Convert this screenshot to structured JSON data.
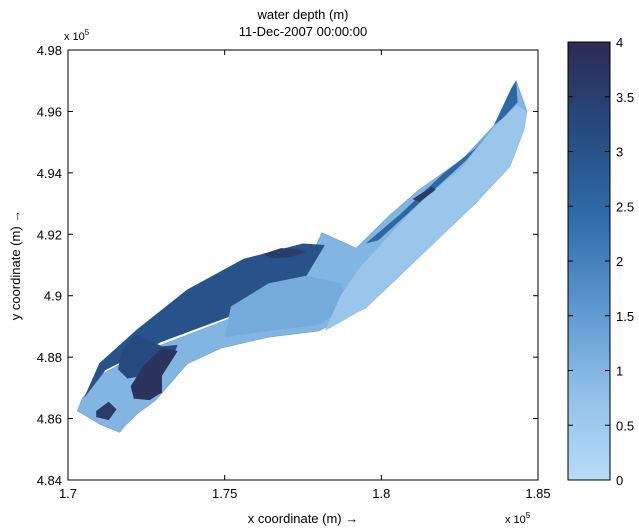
{
  "chart_data": {
    "type": "heatmap",
    "title": "water depth (m)",
    "subtitle": "11-Dec-2007 00:00:00",
    "xlabel": "x coordinate (m) →",
    "ylabel": "y coordinate (m) →",
    "x_exponent_label": "x 10",
    "x_exponent_power": "5",
    "y_exponent_label": "x 10",
    "y_exponent_power": "5",
    "xlim": [
      1.7,
      1.85
    ],
    "ylim": [
      4.84,
      4.98
    ],
    "x_ticks": [
      1.7,
      1.75,
      1.8,
      1.85
    ],
    "x_tick_labels": [
      "1.7",
      "1.75",
      "1.8",
      "1.85"
    ],
    "y_ticks": [
      4.84,
      4.86,
      4.88,
      4.9,
      4.92,
      4.94,
      4.96,
      4.98
    ],
    "y_tick_labels": [
      "4.84",
      "4.86",
      "4.88",
      "4.9",
      "4.92",
      "4.94",
      "4.96",
      "4.98"
    ],
    "colorbar": {
      "min": 0,
      "max": 4,
      "ticks": [
        0,
        0.5,
        1,
        1.5,
        2,
        2.5,
        3,
        3.5,
        4
      ],
      "tick_labels": [
        "0",
        "0.5",
        "1",
        "1.5",
        "2",
        "2.5",
        "3",
        "3.5",
        "4"
      ],
      "colors": [
        "#b9dcf6",
        "#8fbfe8",
        "#5b96cf",
        "#2f6ca8",
        "#264a80",
        "#2d2b52"
      ]
    },
    "grid": false,
    "domain_outline": [
      [
        1.7165,
        4.8555
      ],
      [
        1.7105,
        4.858
      ],
      [
        1.703,
        4.8625
      ],
      [
        1.7045,
        4.8665
      ],
      [
        1.711,
        4.8745
      ],
      [
        1.7235,
        4.8815
      ],
      [
        1.74,
        4.888
      ],
      [
        1.758,
        4.895
      ],
      [
        1.772,
        4.9
      ],
      [
        1.781,
        4.9205
      ],
      [
        1.792,
        4.9155
      ],
      [
        1.803,
        4.9265
      ],
      [
        1.812,
        4.9345
      ],
      [
        1.826,
        4.9445
      ],
      [
        1.836,
        4.9555
      ],
      [
        1.8415,
        4.9675
      ],
      [
        1.843,
        4.97
      ],
      [
        1.8465,
        4.96
      ],
      [
        1.8455,
        4.954
      ],
      [
        1.841,
        4.942
      ],
      [
        1.83,
        4.93
      ],
      [
        1.812,
        4.9125
      ],
      [
        1.795,
        4.896
      ],
      [
        1.78,
        4.8885
      ],
      [
        1.764,
        4.8865
      ],
      [
        1.749,
        4.883
      ],
      [
        1.738,
        4.8778
      ],
      [
        1.731,
        4.8695
      ],
      [
        1.728,
        4.866
      ],
      [
        1.722,
        4.8615
      ],
      [
        1.718,
        4.8575
      ]
    ],
    "depth_zones": [
      {
        "depth": 3.0,
        "polygon": [
          [
            1.705,
            4.8665
          ],
          [
            1.712,
            4.8758
          ],
          [
            1.73,
            4.885
          ],
          [
            1.755,
            4.8945
          ],
          [
            1.772,
            4.8995
          ],
          [
            1.782,
            4.9165
          ],
          [
            1.775,
            4.917
          ],
          [
            1.756,
            4.912
          ],
          [
            1.738,
            4.902
          ],
          [
            1.722,
            4.889
          ],
          [
            1.71,
            4.878
          ]
        ]
      },
      {
        "depth": 2.5,
        "polygon": [
          [
            1.795,
            4.917
          ],
          [
            1.806,
            4.9265
          ],
          [
            1.82,
            4.94
          ],
          [
            1.83,
            4.948
          ],
          [
            1.835,
            4.954
          ],
          [
            1.827,
            4.944
          ],
          [
            1.812,
            4.93
          ],
          [
            1.799,
            4.918
          ]
        ]
      },
      {
        "depth": 2.5,
        "polygon": [
          [
            1.836,
            4.9555
          ],
          [
            1.8415,
            4.9675
          ],
          [
            1.843,
            4.97
          ],
          [
            1.8435,
            4.963
          ],
          [
            1.839,
            4.958
          ]
        ]
      },
      {
        "depth": 3.6,
        "polygon": [
          [
            1.762,
            4.9135
          ],
          [
            1.768,
            4.9155
          ],
          [
            1.773,
            4.9152
          ],
          [
            1.776,
            4.9143
          ],
          [
            1.771,
            4.9125
          ],
          [
            1.765,
            4.9122
          ]
        ]
      },
      {
        "depth": 3.6,
        "polygon": [
          [
            1.81,
            4.9315
          ],
          [
            1.816,
            4.9355
          ],
          [
            1.8175,
            4.9345
          ],
          [
            1.812,
            4.9305
          ]
        ]
      },
      {
        "depth": 3.2,
        "polygon": [
          [
            1.722,
            4.8875
          ],
          [
            1.73,
            4.8835
          ],
          [
            1.735,
            4.884
          ],
          [
            1.733,
            4.879
          ],
          [
            1.728,
            4.876
          ],
          [
            1.724,
            4.874
          ],
          [
            1.719,
            4.873
          ],
          [
            1.716,
            4.876
          ],
          [
            1.717,
            4.882
          ]
        ]
      },
      {
        "depth": 3.8,
        "polygon": [
          [
            1.724,
            4.877
          ],
          [
            1.73,
            4.883
          ],
          [
            1.735,
            4.882
          ],
          [
            1.73,
            4.874
          ],
          [
            1.73,
            4.8685
          ],
          [
            1.726,
            4.866
          ],
          [
            1.721,
            4.8665
          ],
          [
            1.72,
            4.8705
          ]
        ]
      },
      {
        "depth": 3.6,
        "polygon": [
          [
            1.709,
            4.8625
          ],
          [
            1.713,
            4.8655
          ],
          [
            1.7155,
            4.863
          ],
          [
            1.713,
            4.8595
          ],
          [
            1.709,
            4.8605
          ]
        ]
      },
      {
        "depth": 1.2,
        "polygon": [
          [
            1.75,
            4.8865
          ],
          [
            1.764,
            4.8885
          ],
          [
            1.78,
            4.8905
          ],
          [
            1.79,
            4.897
          ],
          [
            1.787,
            4.904
          ],
          [
            1.776,
            4.9065
          ],
          [
            1.764,
            4.904
          ],
          [
            1.752,
            4.8965
          ]
        ]
      },
      {
        "depth": 0.6,
        "polygon": [
          [
            1.782,
            4.8885
          ],
          [
            1.795,
            4.896
          ],
          [
            1.812,
            4.9125
          ],
          [
            1.83,
            4.93
          ],
          [
            1.841,
            4.942
          ],
          [
            1.8455,
            4.954
          ],
          [
            1.8465,
            4.96
          ],
          [
            1.843,
            4.962
          ],
          [
            1.836,
            4.955
          ],
          [
            1.826,
            4.942
          ],
          [
            1.812,
            4.93
          ],
          [
            1.801,
            4.918
          ],
          [
            1.793,
            4.909
          ],
          [
            1.787,
            4.9
          ]
        ]
      }
    ]
  }
}
